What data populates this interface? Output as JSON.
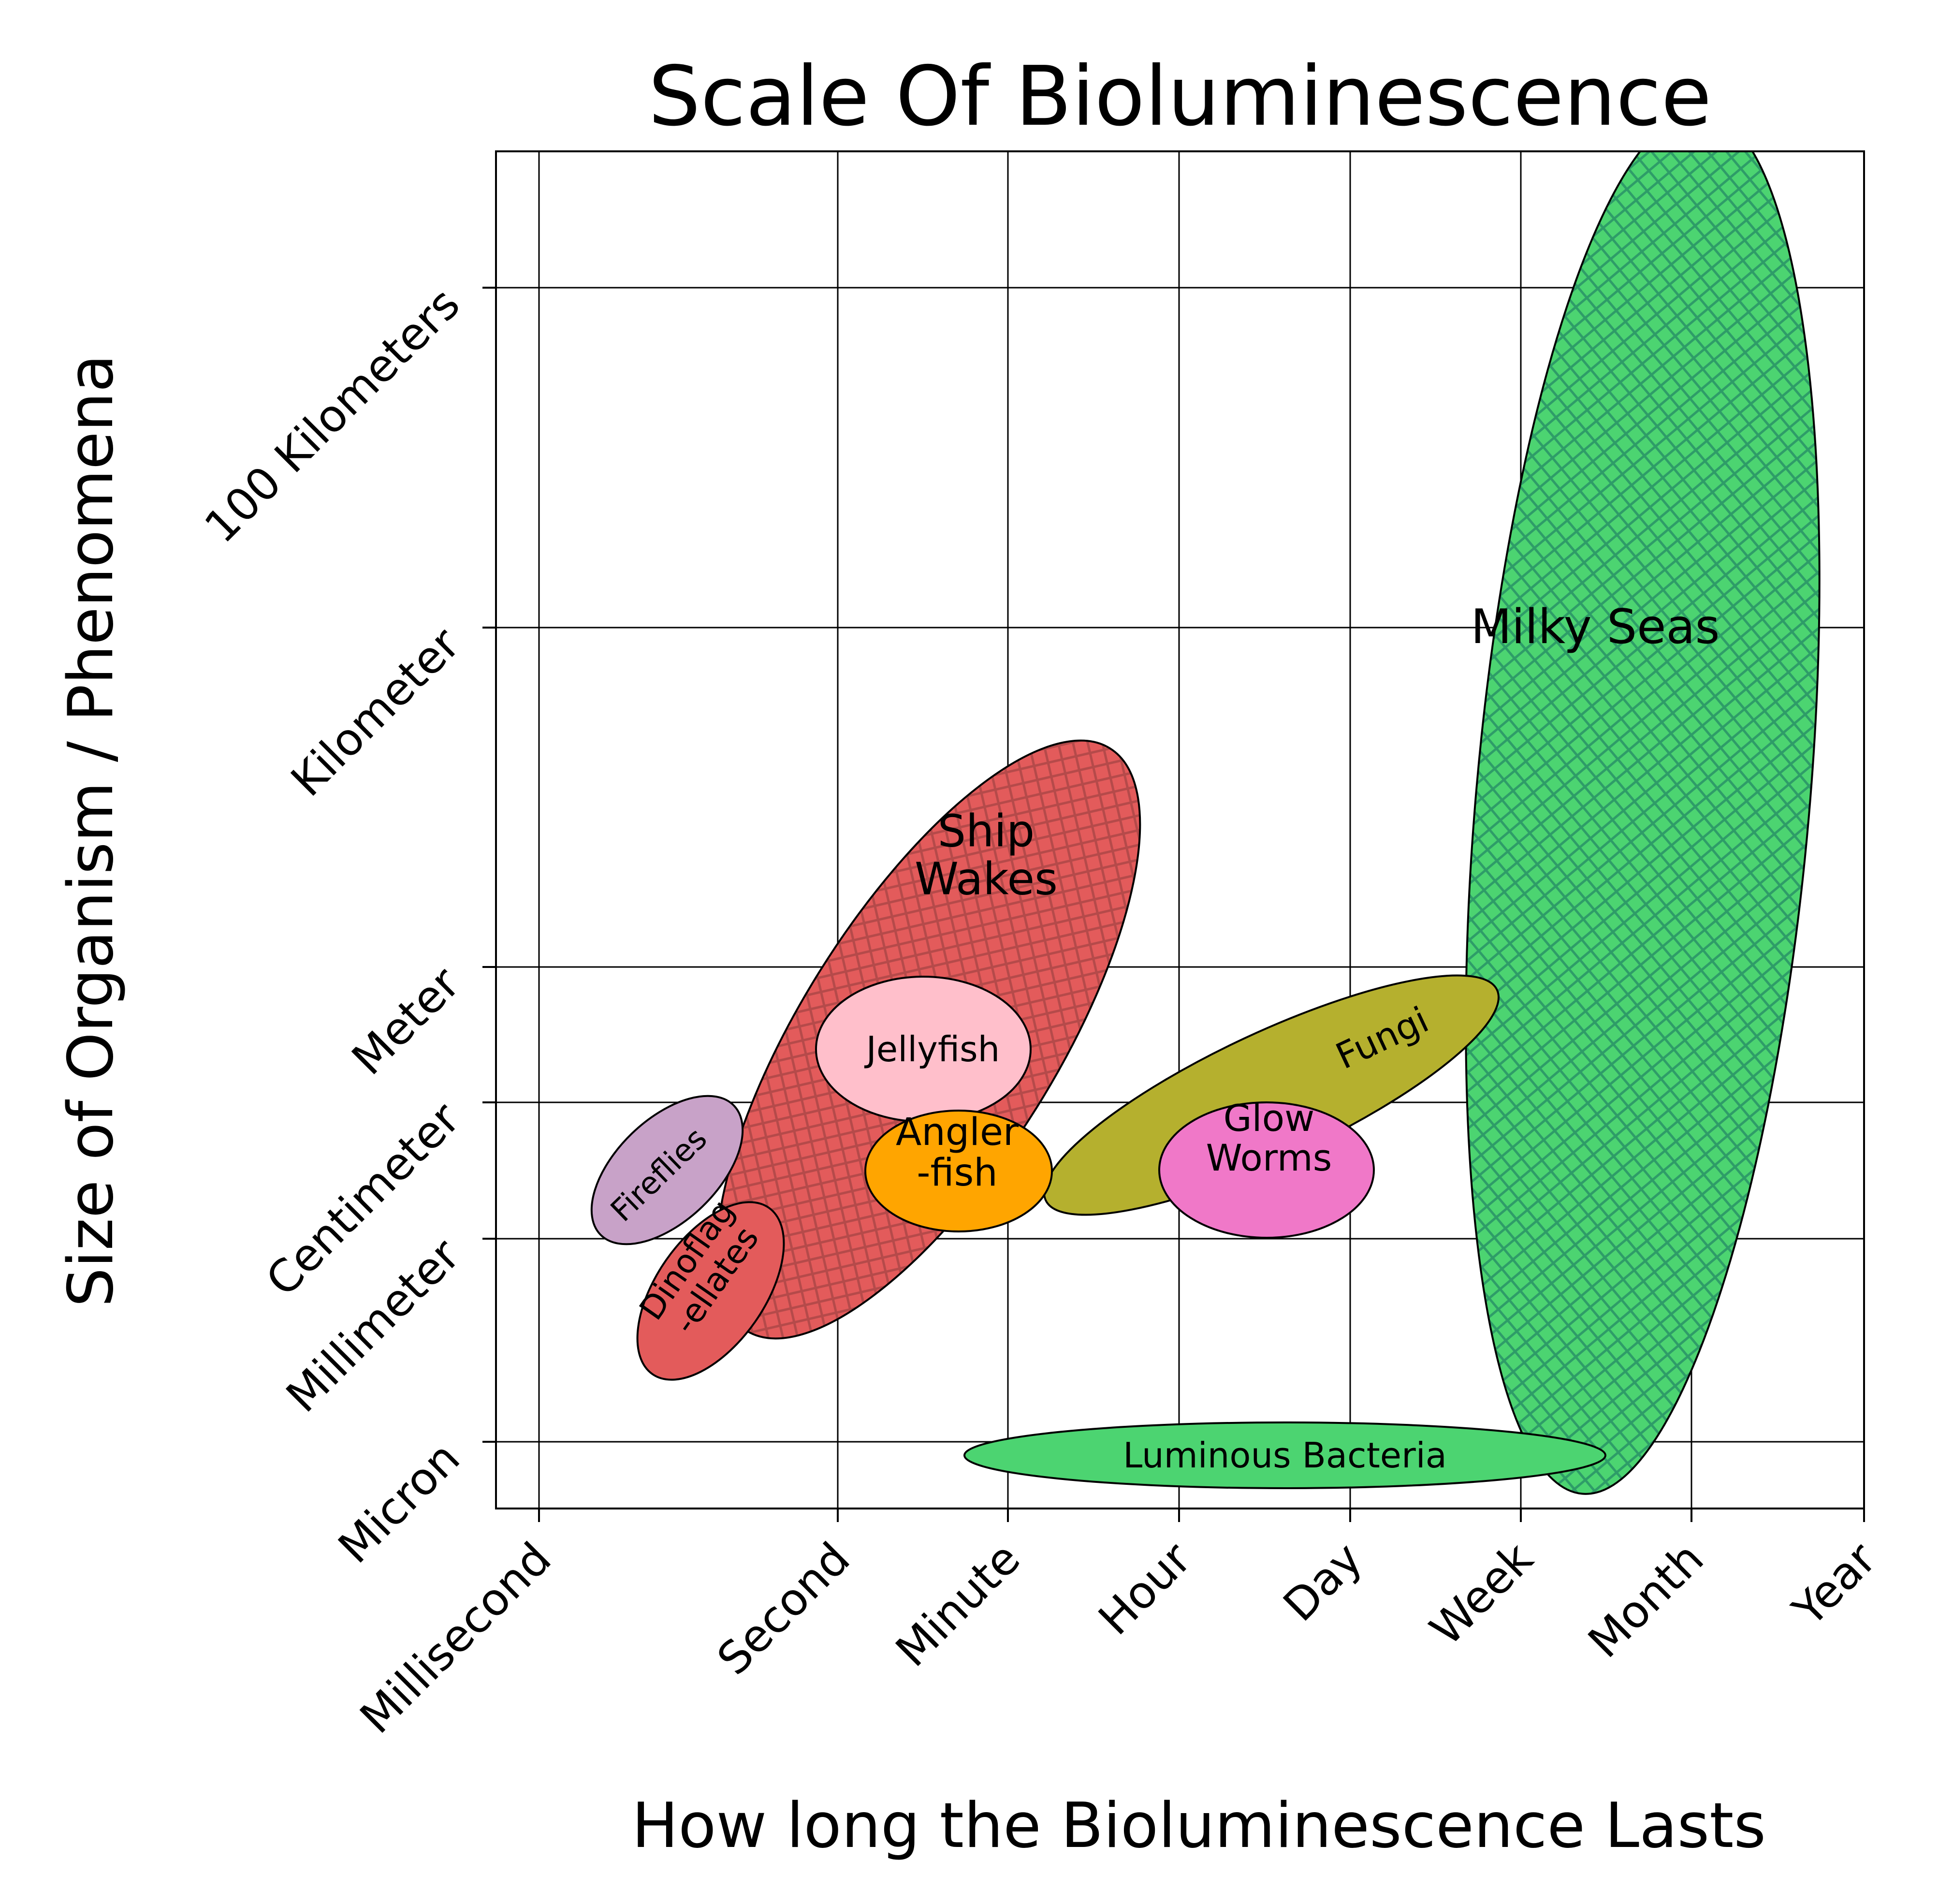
{
  "chart_data": {
    "type": "scatter",
    "title": "Scale Of Bioluminescence",
    "xlabel": "How long the Bioluminescence Lasts",
    "ylabel": "Size of Organism / Phenomena",
    "x_scale": "log",
    "y_scale": "log",
    "grid": true,
    "x_ticks": [
      "Millisecond",
      "Second",
      "Minute",
      "Hour",
      "Day",
      "Week",
      "Month",
      "Year"
    ],
    "y_ticks": [
      "Micron",
      "Millimeter",
      "Centimeter",
      "Meter",
      "Kilometer",
      "100 Kilometers"
    ],
    "regions": [
      {
        "name": "Milky Seas",
        "label": "Milky Seas",
        "color": "#4cd471",
        "hatch": true,
        "x_range": [
          "Day",
          "Year"
        ],
        "y_range": [
          "Micron",
          "100 Kilometers"
        ]
      },
      {
        "name": "Ship Wakes",
        "label": "Ship\nWakes",
        "color": "#e35b5b",
        "hatch": true,
        "x_range": [
          "Millisecond",
          "Minute"
        ],
        "y_range": [
          "Millimeter",
          "Kilometer"
        ]
      },
      {
        "name": "Fungi",
        "label": "Fungi",
        "color": "#b5b02e",
        "x_range": [
          "Minute",
          "Week"
        ],
        "y_range": [
          "Centimeter",
          "Meter"
        ]
      },
      {
        "name": "Luminous Bacteria",
        "label": "Luminous Bacteria",
        "color": "#4cd471",
        "x_range": [
          "Second",
          "Week"
        ],
        "y_range": [
          "Micron",
          "Micron"
        ]
      },
      {
        "name": "Fireflies",
        "label": "Fireflies",
        "color": "#c8a2c8",
        "x_range": [
          "Millisecond",
          "Second"
        ],
        "y_range": [
          "Millimeter",
          "Centimeter"
        ]
      },
      {
        "name": "Dinoflagellates",
        "label": "Dinoflag\n-ellates",
        "color": "#e35b5b",
        "x_range": [
          "Millisecond",
          "Second"
        ],
        "y_range": [
          "Micron",
          "Millimeter"
        ]
      },
      {
        "name": "Jellyfish",
        "label": "Jellyfish",
        "color": "#ffbfcb",
        "x_range": [
          "Second",
          "Minute"
        ],
        "y_range": [
          "Centimeter",
          "Meter"
        ]
      },
      {
        "name": "Anglerfish",
        "label": "Angler\n-fish",
        "color": "#ffa500",
        "x_range": [
          "Second",
          "Minute"
        ],
        "y_range": [
          "Millimeter",
          "Centimeter"
        ]
      },
      {
        "name": "Glow Worms",
        "label": "Glow\nWorms",
        "color": "#f078c8",
        "x_range": [
          "Hour",
          "Day"
        ],
        "y_range": [
          "Millimeter",
          "Centimeter"
        ]
      }
    ]
  }
}
